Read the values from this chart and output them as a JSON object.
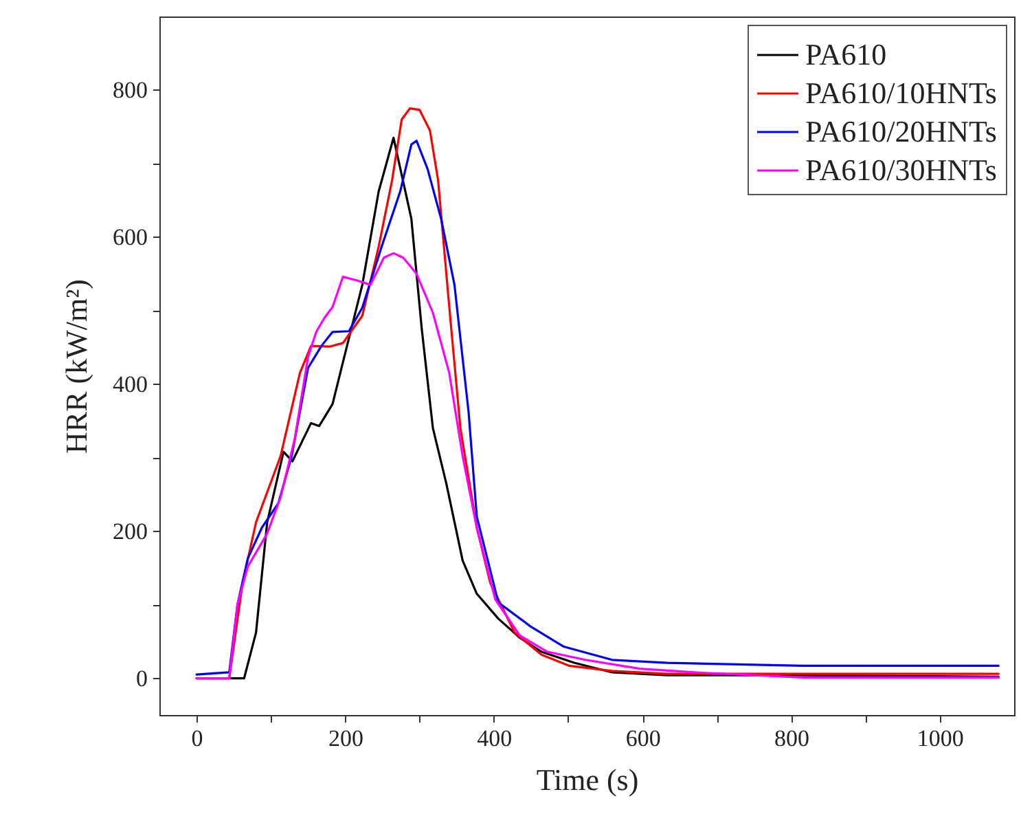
{
  "chart_data": {
    "type": "line",
    "xlabel": "Time (s)",
    "ylabel": "HRR (kW/m²)",
    "xlim": [
      -50,
      1100
    ],
    "ylim": [
      -50,
      900
    ],
    "xticks": [
      0,
      {
        "value": 100,
        "label": null
      },
      200,
      {
        "value": 300,
        "label": null
      },
      400,
      {
        "value": 500,
        "label": null
      },
      600,
      {
        "value": 700,
        "label": null
      },
      800,
      {
        "value": 900,
        "label": null
      },
      1000
    ],
    "yticks": [
      0,
      {
        "value": 100,
        "label": null
      },
      200,
      {
        "value": 300,
        "label": null
      },
      400,
      {
        "value": 500,
        "label": null
      },
      600,
      {
        "value": 700,
        "label": null
      },
      800
    ],
    "legend": "top right",
    "series": [
      {
        "name": "PA610",
        "color": "#000000",
        "x": [
          0,
          64,
          80,
          95,
          117,
          129,
          154,
          165,
          183,
          197,
          223,
          245,
          265,
          289,
          303,
          318,
          336,
          358,
          377,
          406,
          435,
          464,
          508,
          559,
          633,
          815,
          1079
        ],
        "values": [
          0,
          0,
          62,
          212,
          308,
          295,
          347,
          343,
          373,
          430,
          535,
          662,
          735,
          625,
          475,
          340,
          265,
          160,
          115,
          81,
          55,
          36,
          21,
          8,
          4,
          4,
          2
        ]
      },
      {
        "name": "PA610/10HNTs",
        "color": "#ff0000",
        "x": [
          0,
          44,
          62,
          80,
          113,
          139,
          154,
          179,
          197,
          223,
          245,
          263,
          276,
          287,
          300,
          314,
          325,
          340,
          355,
          377,
          395,
          428,
          464,
          501,
          559,
          633,
          815,
          1079
        ],
        "values": [
          0,
          0,
          130,
          212,
          302,
          415,
          452,
          451,
          456,
          493,
          587,
          677,
          760,
          775,
          773,
          745,
          677,
          505,
          340,
          205,
          130,
          62,
          32,
          17,
          10,
          6,
          6,
          6
        ]
      },
      {
        "name": "PA610/20HNTs",
        "color": "#0000ff",
        "x": [
          0,
          44,
          55,
          69,
          88,
          110,
          128,
          150,
          168,
          183,
          205,
          223,
          249,
          274,
          289,
          296,
          311,
          329,
          347,
          366,
          377,
          406,
          450,
          494,
          559,
          633,
          815,
          1079
        ],
        "values": [
          5,
          8,
          100,
          163,
          205,
          238,
          302,
          422,
          452,
          471,
          472,
          504,
          587,
          662,
          726,
          731,
          692,
          625,
          535,
          362,
          220,
          103,
          70,
          43,
          25,
          21,
          17,
          17
        ]
      },
      {
        "name": "PA610/30HNTs",
        "color": "#ff00ff",
        "x": [
          0,
          44,
          55,
          69,
          95,
          113,
          132,
          150,
          161,
          172,
          183,
          197,
          216,
          234,
          252,
          265,
          278,
          296,
          318,
          340,
          358,
          377,
          402,
          435,
          472,
          523,
          596,
          669,
          815,
          1079
        ],
        "values": [
          0,
          0,
          100,
          152,
          197,
          246,
          325,
          437,
          471,
          490,
          505,
          546,
          541,
          535,
          572,
          578,
          572,
          550,
          497,
          415,
          302,
          205,
          107,
          58,
          36,
          25,
          13,
          8,
          1,
          1
        ]
      }
    ]
  }
}
